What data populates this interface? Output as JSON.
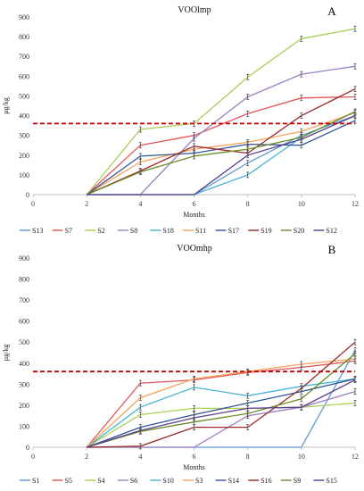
{
  "chart_data": [
    {
      "type": "line",
      "panel": "A",
      "title": "VOOlmp",
      "xlabel": "Months",
      "ylabel": "µg/kg",
      "x": [
        0,
        2,
        4,
        6,
        8,
        10,
        12
      ],
      "xticks": [
        0,
        2,
        4,
        6,
        8,
        10,
        12
      ],
      "xlim": [
        0,
        12
      ],
      "ylim": [
        0,
        900
      ],
      "yticks": [
        0,
        100,
        200,
        300,
        400,
        500,
        600,
        700,
        800,
        900
      ],
      "threshold": 360,
      "threshold_color": "#c00000",
      "grid": false,
      "legend_position": "bottom",
      "series": [
        {
          "name": "S13",
          "color": "#5b9bd5",
          "values": [
            null,
            0,
            0,
            0,
            160,
            300,
            400
          ]
        },
        {
          "name": "S7",
          "color": "#e15759",
          "values": [
            null,
            0,
            250,
            300,
            410,
            490,
            495
          ]
        },
        {
          "name": "S2",
          "color": "#a9cf54",
          "values": [
            null,
            0,
            330,
            360,
            595,
            790,
            840
          ]
        },
        {
          "name": "S8",
          "color": "#9a7fc1",
          "values": [
            null,
            0,
            0,
            285,
            495,
            610,
            650
          ]
        },
        {
          "name": "S18",
          "color": "#47b3d6",
          "values": [
            null,
            0,
            0,
            0,
            100,
            290,
            420
          ]
        },
        {
          "name": "S11",
          "color": "#f7a35c",
          "values": [
            null,
            0,
            165,
            230,
            265,
            320,
            415
          ]
        },
        {
          "name": "S17",
          "color": "#2f5597",
          "values": [
            null,
            0,
            195,
            210,
            255,
            250,
            375
          ]
        },
        {
          "name": "S19",
          "color": "#9e2a2b",
          "values": [
            null,
            0,
            120,
            245,
            210,
            400,
            535
          ]
        },
        {
          "name": "S20",
          "color": "#6b8e23",
          "values": [
            null,
            0,
            115,
            195,
            230,
            290,
            420
          ]
        },
        {
          "name": "S12",
          "color": "#5b3f8c",
          "values": [
            null,
            0,
            0,
            0,
            200,
            280,
            400
          ]
        }
      ]
    },
    {
      "type": "line",
      "panel": "B",
      "title": "VOOmhp",
      "xlabel": "Months",
      "ylabel": "µg/kg",
      "x": [
        0,
        2,
        4,
        6,
        8,
        10,
        12
      ],
      "xticks": [
        0,
        2,
        4,
        6,
        8,
        10,
        12
      ],
      "xlim": [
        0,
        12
      ],
      "ylim": [
        0,
        900
      ],
      "yticks": [
        0,
        100,
        200,
        300,
        400,
        500,
        600,
        700,
        800,
        900
      ],
      "threshold": 360,
      "threshold_color": "#c00000",
      "grid": false,
      "legend_position": "bottom",
      "series": [
        {
          "name": "S1",
          "color": "#5b9bd5",
          "values": [
            null,
            0,
            0,
            0,
            0,
            0,
            460
          ]
        },
        {
          "name": "S5",
          "color": "#e15759",
          "values": [
            null,
            0,
            305,
            320,
            355,
            380,
            410
          ]
        },
        {
          "name": "S4",
          "color": "#a9cf54",
          "values": [
            null,
            0,
            155,
            185,
            185,
            190,
            210
          ]
        },
        {
          "name": "S6",
          "color": "#9a7fc1",
          "values": [
            null,
            0,
            0,
            0,
            150,
            190,
            265
          ]
        },
        {
          "name": "S10",
          "color": "#47b3d6",
          "values": [
            null,
            0,
            190,
            285,
            245,
            290,
            325
          ]
        },
        {
          "name": "S3",
          "color": "#f7a35c",
          "values": [
            null,
            0,
            235,
            325,
            360,
            395,
            420
          ]
        },
        {
          "name": "S14",
          "color": "#2f5597",
          "values": [
            null,
            0,
            95,
            155,
            210,
            265,
            325
          ]
        },
        {
          "name": "S16",
          "color": "#9e2a2b",
          "values": [
            null,
            0,
            5,
            95,
            95,
            280,
            500
          ]
        },
        {
          "name": "S9",
          "color": "#6b8e23",
          "values": [
            null,
            0,
            75,
            120,
            160,
            230,
            445
          ]
        },
        {
          "name": "S15",
          "color": "#5b3f8c",
          "values": [
            null,
            0,
            80,
            140,
            185,
            190,
            320
          ]
        }
      ]
    }
  ]
}
